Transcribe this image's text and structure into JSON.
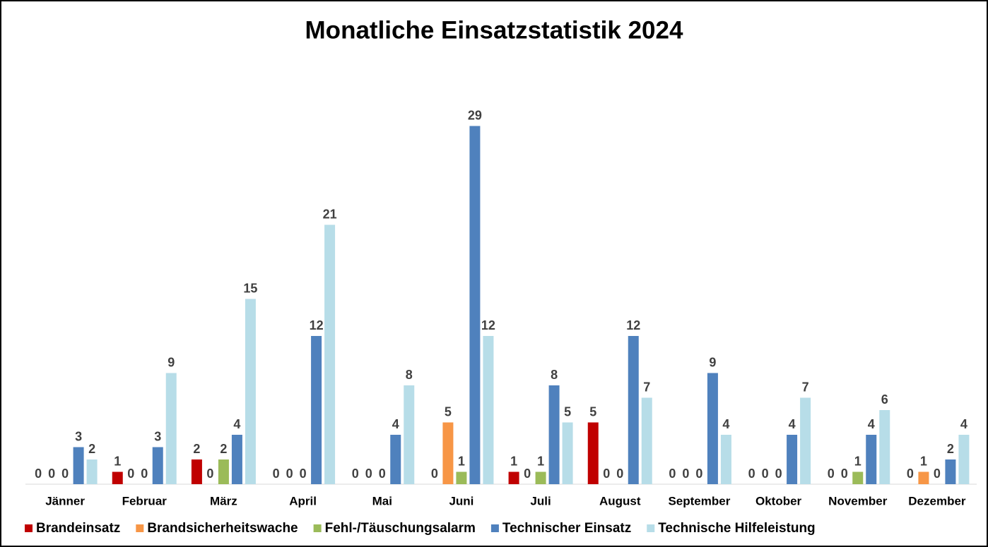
{
  "chart_data": {
    "type": "bar",
    "title": "Monatliche Einsatzstatistik 2024",
    "categories": [
      "Jänner",
      "Februar",
      "März",
      "April",
      "Mai",
      "Juni",
      "Juli",
      "August",
      "September",
      "Oktober",
      "November",
      "Dezember"
    ],
    "series": [
      {
        "name": "Brandeinsatz",
        "color": "#c00000",
        "values": [
          0,
          1,
          2,
          0,
          0,
          0,
          1,
          5,
          0,
          0,
          0,
          0
        ]
      },
      {
        "name": "Brandsicherheitswache",
        "color": "#f79646",
        "values": [
          0,
          0,
          0,
          0,
          0,
          5,
          0,
          0,
          0,
          0,
          0,
          1
        ]
      },
      {
        "name": "Fehl-/Täuschungsalarm",
        "color": "#9bbb59",
        "values": [
          0,
          0,
          2,
          0,
          0,
          1,
          1,
          0,
          0,
          0,
          1,
          0
        ]
      },
      {
        "name": "Technischer Einsatz",
        "color": "#4f81bd",
        "values": [
          3,
          3,
          4,
          12,
          4,
          29,
          8,
          12,
          9,
          4,
          4,
          2
        ]
      },
      {
        "name": "Technische Hilfeleistung",
        "color": "#b7dde8",
        "values": [
          2,
          9,
          15,
          21,
          8,
          12,
          5,
          7,
          4,
          7,
          6,
          4
        ]
      }
    ],
    "ylim": [
      0,
      30
    ],
    "legend": "bottom"
  }
}
